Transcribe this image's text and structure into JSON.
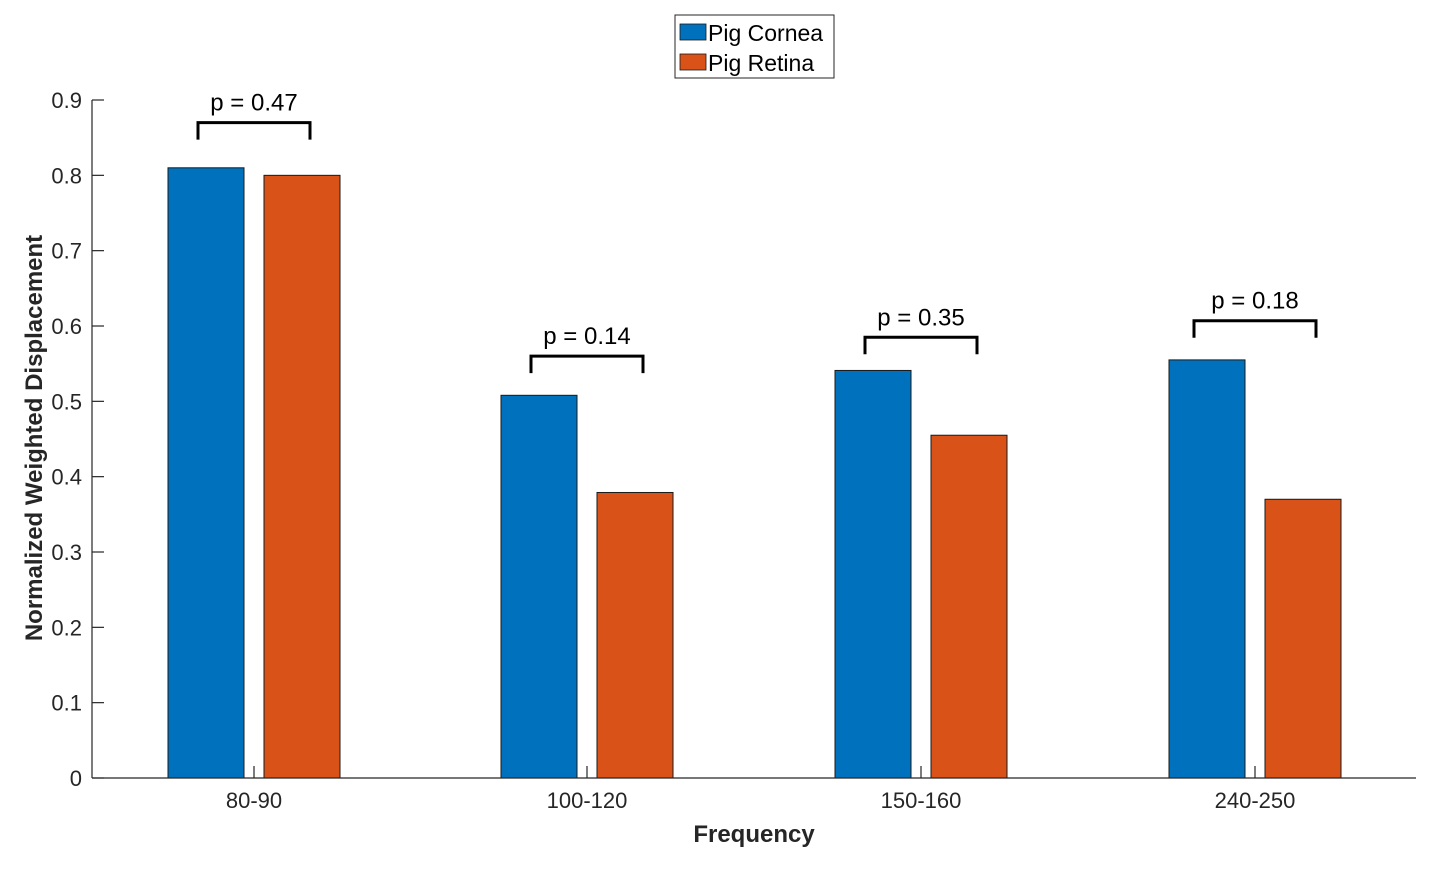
{
  "chart_data": {
    "type": "bar",
    "xlabel": "Frequency",
    "ylabel": "Normalized Weighted Displacement",
    "categories": [
      "80-90",
      "100-120",
      "150-160",
      "240-250"
    ],
    "series": [
      {
        "name": "Pig Cornea",
        "color": "#0072BD",
        "values": [
          0.81,
          0.508,
          0.541,
          0.555
        ]
      },
      {
        "name": "Pig Retina",
        "color": "#D95319",
        "values": [
          0.8,
          0.379,
          0.455,
          0.37
        ]
      }
    ],
    "ylim": [
      0,
      0.9
    ],
    "yticks": [
      0,
      0.1,
      0.2,
      0.3,
      0.4,
      0.5,
      0.6,
      0.7,
      0.8,
      0.9
    ],
    "ytick_labels": [
      "0",
      "0.1",
      "0.2",
      "0.3",
      "0.4",
      "0.5",
      "0.6",
      "0.7",
      "0.8",
      "0.9"
    ],
    "legend_placement": "top-center",
    "grid": false,
    "annotations": [
      {
        "category": "80-90",
        "text": "p = 0.47",
        "y": 0.87
      },
      {
        "category": "100-120",
        "text": "p = 0.14",
        "y": 0.56
      },
      {
        "category": "150-160",
        "text": "p = 0.35",
        "y": 0.585
      },
      {
        "category": "240-250",
        "text": "p = 0.18",
        "y": 0.607
      }
    ]
  }
}
